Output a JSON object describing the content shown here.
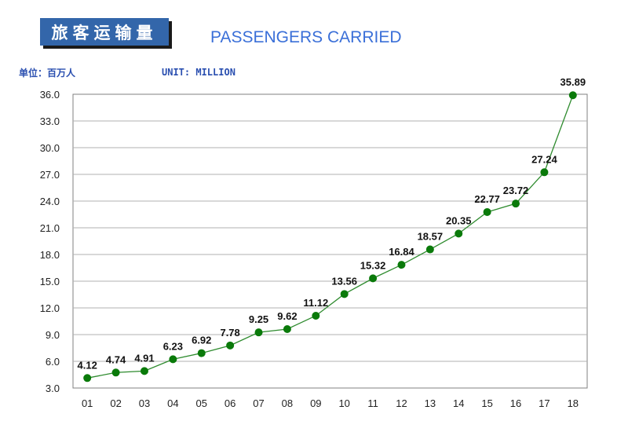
{
  "header": {
    "title_cn": "旅客运输量",
    "title_en": "PASSENGERS CARRIED",
    "unit_cn": "单位：百万人",
    "unit_en": "UNIT: MILLION"
  },
  "chart_data": {
    "type": "line",
    "title": "PASSENGERS CARRIED",
    "categories": [
      "01",
      "02",
      "03",
      "04",
      "05",
      "06",
      "07",
      "08",
      "09",
      "10",
      "11",
      "12",
      "13",
      "14",
      "15",
      "16",
      "17",
      "18"
    ],
    "series": [
      {
        "values": [
          4.12,
          4.74,
          4.91,
          6.23,
          6.92,
          7.78,
          9.25,
          9.62,
          11.12,
          13.56,
          15.32,
          16.84,
          18.57,
          20.35,
          22.77,
          23.72,
          27.24,
          35.89
        ],
        "labels": [
          "4.12",
          "4.74",
          "4.91",
          "6.23",
          "6.92",
          "7.78",
          "9.25",
          "9.62",
          "11.12",
          "13.56",
          "15.32",
          "16.84",
          "18.57",
          "20.35",
          "22.77",
          "23.72",
          "27.24",
          "35.89"
        ]
      }
    ],
    "ylim": [
      3.0,
      36.0
    ],
    "yticks": [
      "3.0",
      "6.0",
      "9.0",
      "12.0",
      "15.0",
      "18.0",
      "21.0",
      "24.0",
      "27.0",
      "30.0",
      "33.0",
      "36.0"
    ],
    "grid": true,
    "legend": "none",
    "colors": {
      "line": "#2e8b2e",
      "marker": "#0a7a0a",
      "grid": "#b0b0b0"
    }
  }
}
